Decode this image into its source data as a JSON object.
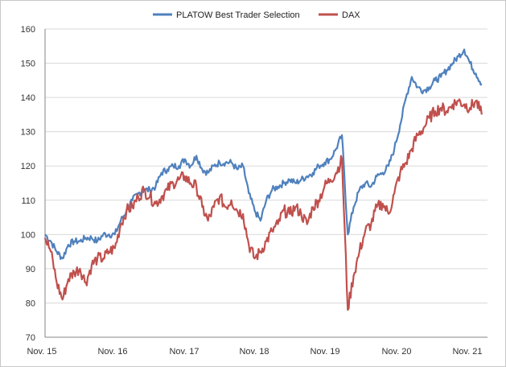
{
  "chart_data": {
    "type": "line",
    "title": "",
    "xlabel": "",
    "ylabel": "",
    "ylim": [
      70,
      160
    ],
    "y_ticks": [
      70,
      80,
      90,
      100,
      110,
      120,
      130,
      140,
      150,
      160
    ],
    "x_ticks": [
      "Nov. 15",
      "Nov. 16",
      "Nov. 17",
      "Nov. 18",
      "Nov. 19",
      "Nov. 20",
      "Nov. 21"
    ],
    "xlim": [
      "2015-11",
      "2022-03"
    ],
    "grid": "horizontal",
    "legend": "top-center",
    "series": [
      {
        "name": "PLATOW Best Trader Selection",
        "color": "#4F81BD",
        "x": [
          "2015-11",
          "2015-12",
          "2016-01",
          "2016-02",
          "2016-03",
          "2016-04",
          "2016-05",
          "2016-06",
          "2016-07",
          "2016-08",
          "2016-09",
          "2016-10",
          "2016-11",
          "2016-12",
          "2017-01",
          "2017-02",
          "2017-03",
          "2017-04",
          "2017-05",
          "2017-06",
          "2017-07",
          "2017-08",
          "2017-09",
          "2017-10",
          "2017-11",
          "2017-12",
          "2018-01",
          "2018-02",
          "2018-03",
          "2018-04",
          "2018-05",
          "2018-06",
          "2018-07",
          "2018-08",
          "2018-09",
          "2018-10",
          "2018-11",
          "2018-12",
          "2019-01",
          "2019-02",
          "2019-03",
          "2019-04",
          "2019-05",
          "2019-06",
          "2019-07",
          "2019-08",
          "2019-09",
          "2019-10",
          "2019-11",
          "2019-12",
          "2020-01",
          "2020-02",
          "2020-03",
          "2020-04",
          "2020-05",
          "2020-06",
          "2020-07",
          "2020-08",
          "2020-09",
          "2020-10",
          "2020-11",
          "2020-12",
          "2021-01",
          "2021-02",
          "2021-03",
          "2021-04",
          "2021-05",
          "2021-06",
          "2021-07",
          "2021-08",
          "2021-09",
          "2021-10",
          "2021-11",
          "2021-12",
          "2022-01",
          "2022-02"
        ],
        "values": [
          100,
          98,
          95,
          93,
          97,
          98,
          98,
          99,
          99,
          98,
          100,
          100,
          100,
          104,
          107,
          110,
          112,
          113,
          113,
          114,
          118,
          119,
          120,
          120,
          122,
          120,
          123,
          119,
          118,
          120,
          121,
          121,
          121,
          119,
          120,
          112,
          107,
          104,
          110,
          113,
          114,
          115,
          116,
          115,
          116,
          117,
          118,
          120,
          121,
          122,
          125,
          129,
          100,
          108,
          113,
          115,
          114,
          117,
          118,
          120,
          125,
          132,
          140,
          146,
          143,
          142,
          143,
          145,
          146,
          148,
          150,
          152,
          154,
          150,
          147,
          144
        ]
      },
      {
        "name": "DAX",
        "color": "#C0504D",
        "x": [
          "2015-11",
          "2015-12",
          "2016-01",
          "2016-02",
          "2016-03",
          "2016-04",
          "2016-05",
          "2016-06",
          "2016-07",
          "2016-08",
          "2016-09",
          "2016-10",
          "2016-11",
          "2016-12",
          "2017-01",
          "2017-02",
          "2017-03",
          "2017-04",
          "2017-05",
          "2017-06",
          "2017-07",
          "2017-08",
          "2017-09",
          "2017-10",
          "2017-11",
          "2017-12",
          "2018-01",
          "2018-02",
          "2018-03",
          "2018-04",
          "2018-05",
          "2018-06",
          "2018-07",
          "2018-08",
          "2018-09",
          "2018-10",
          "2018-11",
          "2018-12",
          "2019-01",
          "2019-02",
          "2019-03",
          "2019-04",
          "2019-05",
          "2019-06",
          "2019-07",
          "2019-08",
          "2019-09",
          "2019-10",
          "2019-11",
          "2019-12",
          "2020-01",
          "2020-02",
          "2020-03",
          "2020-04",
          "2020-05",
          "2020-06",
          "2020-07",
          "2020-08",
          "2020-09",
          "2020-10",
          "2020-11",
          "2020-12",
          "2021-01",
          "2021-02",
          "2021-03",
          "2021-04",
          "2021-05",
          "2021-06",
          "2021-07",
          "2021-08",
          "2021-09",
          "2021-10",
          "2021-11",
          "2021-12",
          "2022-01",
          "2022-02"
        ],
        "values": [
          99,
          95,
          86,
          81,
          87,
          89,
          90,
          86,
          91,
          93,
          93,
          95,
          96,
          103,
          107,
          108,
          111,
          113,
          111,
          109,
          111,
          113,
          115,
          116,
          117,
          115,
          114,
          108,
          104,
          108,
          111,
          108,
          110,
          107,
          106,
          97,
          93,
          95,
          98,
          101,
          103,
          107,
          106,
          108,
          106,
          103,
          108,
          110,
          114,
          116,
          118,
          122,
          78,
          88,
          95,
          101,
          103,
          108,
          109,
          106,
          112,
          118,
          121,
          125,
          129,
          131,
          134,
          136,
          137,
          136,
          138,
          139,
          138,
          137,
          139,
          135
        ]
      }
    ]
  }
}
